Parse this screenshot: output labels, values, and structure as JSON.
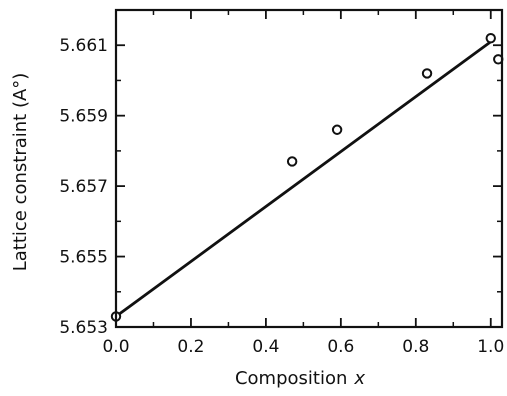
{
  "chart_data": {
    "type": "scatter",
    "title": "",
    "xlabel": "Composition",
    "xlabel_var": "x",
    "ylabel": "Lattice constraint (A°)",
    "xlim": [
      0.0,
      1.03
    ],
    "ylim": [
      5.653,
      5.662
    ],
    "x_ticks": [
      0.0,
      0.2,
      0.4,
      0.6,
      0.8,
      1.0
    ],
    "x_tick_labels": [
      "0.0",
      "0.2",
      "0.4",
      "0.6",
      "0.8",
      "1.0"
    ],
    "y_ticks": [
      5.653,
      5.655,
      5.657,
      5.659,
      5.661
    ],
    "y_tick_labels": [
      "5.653",
      "5.655",
      "5.657",
      "5.659",
      "5.661"
    ],
    "grid": false,
    "series": [
      {
        "kind": "points",
        "marker": "open-circle",
        "x": [
          0.0,
          0.47,
          0.59,
          0.83,
          1.0,
          1.02
        ],
        "y": [
          5.6533,
          5.6577,
          5.6586,
          5.6602,
          5.6612,
          5.6606
        ]
      },
      {
        "kind": "fit-line",
        "x": [
          0.0,
          1.0
        ],
        "y": [
          5.6533,
          5.6611
        ]
      }
    ],
    "colors": {
      "ink": "#111111",
      "background": "#ffffff"
    }
  }
}
